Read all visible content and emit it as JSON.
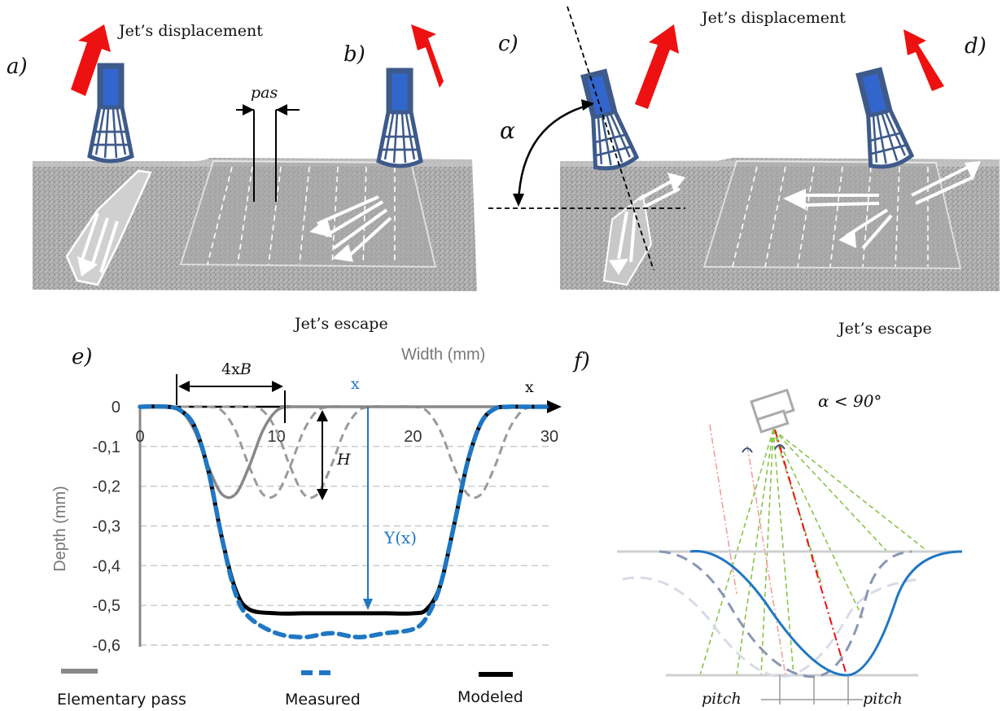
{
  "panel_labels": {
    "a": "a)",
    "b": "b)",
    "c": "c)",
    "d": "d)",
    "e": "e)",
    "f": "f)"
  },
  "top": {
    "jet_displacement_1": "Jet’s displacement",
    "jet_displacement_2": "Jet’s displacement",
    "jet_escape_1": "Jet’s escape",
    "jet_escape_2": "Jet’s escape",
    "pas": "pas",
    "alpha": "α"
  },
  "chart_e": {
    "x_axis_title": "Width (mm)",
    "y_axis_title": "Depth (mm)",
    "x_ticks": [
      "0",
      "10",
      "20",
      "30"
    ],
    "y_ticks": [
      "0",
      "-0,1",
      "-0,2",
      "-0,3",
      "-0,4",
      "-0,5",
      "-0,6"
    ],
    "x_marker_1": "x",
    "x_marker_2": "x",
    "width_label_pre": "4x",
    "width_label_var": "B",
    "height_label": "H",
    "yx_label": "Y(x)",
    "legend": {
      "elementary": "Elementary pass",
      "measured": "Measured",
      "modeled": "Modeled"
    }
  },
  "panel_f": {
    "angle_label": "α < 90°",
    "pitch_left": "pitch",
    "pitch_right": "pitch"
  },
  "colors": {
    "jet_red": "#ee1111",
    "nozzle": "#3d5a8a",
    "nozzle_core": "#3366cc",
    "measured": "#1f77c4",
    "modeled": "#000000",
    "elementary": "#888888"
  },
  "chart_data": {
    "type": "line",
    "title": "",
    "xlabel": "Width (mm)",
    "ylabel": "Depth (mm)",
    "xlim": [
      0,
      30
    ],
    "ylim": [
      -0.6,
      0
    ],
    "series": [
      {
        "name": "Elementary pass",
        "x": [
          0,
          2,
          3,
          4,
          5,
          6,
          7,
          8,
          9,
          10,
          11,
          12,
          30
        ],
        "y": [
          0,
          0,
          -0.01,
          -0.06,
          -0.15,
          -0.22,
          -0.22,
          -0.15,
          -0.06,
          -0.01,
          0,
          0,
          0
        ]
      },
      {
        "name": "Measured",
        "x": [
          0,
          2,
          3,
          4,
          5,
          6,
          7,
          8,
          10,
          12,
          14,
          16,
          18,
          20,
          21,
          22,
          23,
          24,
          25,
          26,
          27,
          28,
          30
        ],
        "y": [
          0,
          0,
          -0.01,
          -0.05,
          -0.16,
          -0.33,
          -0.47,
          -0.53,
          -0.57,
          -0.58,
          -0.57,
          -0.58,
          -0.57,
          -0.56,
          -0.53,
          -0.45,
          -0.3,
          -0.14,
          -0.04,
          -0.005,
          0,
          0,
          0
        ]
      },
      {
        "name": "Modeled",
        "x": [
          0,
          2,
          3,
          4,
          5,
          6,
          7,
          8,
          10,
          12,
          14,
          16,
          18,
          20,
          21,
          22,
          23,
          24,
          25,
          26,
          27,
          28,
          30
        ],
        "y": [
          0,
          0,
          -0.01,
          -0.05,
          -0.16,
          -0.33,
          -0.46,
          -0.51,
          -0.52,
          -0.52,
          -0.52,
          -0.52,
          -0.52,
          -0.52,
          -0.51,
          -0.45,
          -0.3,
          -0.14,
          -0.04,
          -0.005,
          0,
          0,
          0
        ]
      }
    ]
  }
}
